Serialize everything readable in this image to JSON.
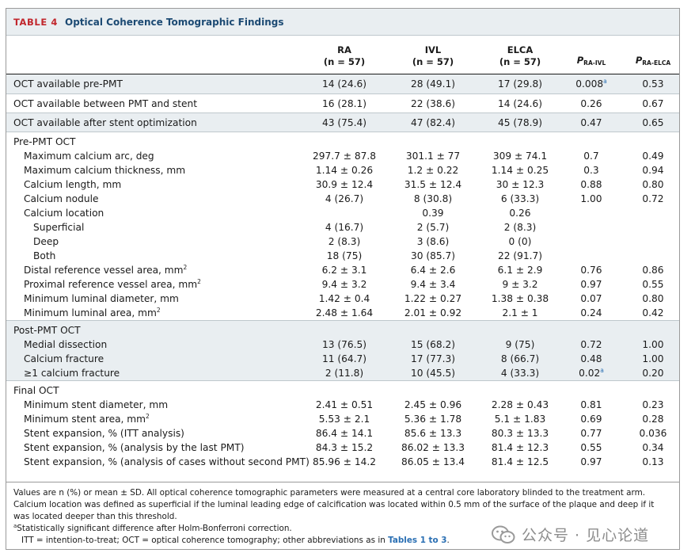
{
  "title": {
    "label": "TABLE 4",
    "text": "Optical Coherence Tomographic Findings"
  },
  "columns": [
    {
      "name": "RA",
      "n": "(n = 57)"
    },
    {
      "name": "IVL",
      "n": "(n = 57)"
    },
    {
      "name": "ELCA",
      "n": "(n = 57)"
    }
  ],
  "p_columns": [
    {
      "p": "P",
      "sub": "RA-IVL"
    },
    {
      "p": "P",
      "sub": "RA-ELCA"
    }
  ],
  "rows": [
    {
      "type": "data",
      "shade": true,
      "tall": true,
      "label": "OCT available pre-PMT",
      "v": [
        "14 (24.6)",
        "28 (49.1)",
        "17 (29.8)",
        "0.008",
        "0.53"
      ],
      "sup3": "a"
    },
    {
      "type": "data",
      "shade": false,
      "tall": true,
      "label": "OCT available between PMT and stent",
      "v": [
        "16 (28.1)",
        "22 (38.6)",
        "14 (24.6)",
        "0.26",
        "0.67"
      ]
    },
    {
      "type": "data",
      "shade": true,
      "tall": true,
      "label": "OCT available after stent optimization",
      "v": [
        "43 (75.4)",
        "47 (82.4)",
        "45 (78.9)",
        "0.47",
        "0.65"
      ]
    },
    {
      "type": "section",
      "shade": false,
      "label": "Pre-PMT OCT"
    },
    {
      "type": "data",
      "shade": false,
      "indent": 1,
      "label": "Maximum calcium arc, deg",
      "v": [
        "297.7 ± 87.8",
        "301.1 ± 77",
        "309 ± 74.1",
        "0.7",
        "0.49"
      ]
    },
    {
      "type": "data",
      "shade": false,
      "indent": 1,
      "label": "Maximum calcium thickness, mm",
      "v": [
        "1.14 ± 0.26",
        "1.2 ± 0.22",
        "1.14 ± 0.25",
        "0.3",
        "0.94"
      ]
    },
    {
      "type": "data",
      "shade": false,
      "indent": 1,
      "label": "Calcium length, mm",
      "v": [
        "30.9 ± 12.4",
        "31.5 ± 12.4",
        "30 ± 12.3",
        "0.88",
        "0.80"
      ]
    },
    {
      "type": "data",
      "shade": false,
      "indent": 1,
      "label": "Calcium nodule",
      "v": [
        "4 (26.7)",
        "8 (30.8)",
        "6 (33.3)",
        "1.00",
        "0.72"
      ]
    },
    {
      "type": "data",
      "shade": false,
      "indent": 1,
      "label": "Calcium location",
      "v": [
        "",
        "0.39",
        "0.26",
        "",
        ""
      ]
    },
    {
      "type": "data",
      "shade": false,
      "indent": 2,
      "label": "Superficial",
      "v": [
        "4 (16.7)",
        "2 (5.7)",
        "2 (8.3)",
        "",
        ""
      ]
    },
    {
      "type": "data",
      "shade": false,
      "indent": 2,
      "label": "Deep",
      "v": [
        "2 (8.3)",
        "3 (8.6)",
        "0 (0)",
        "",
        ""
      ]
    },
    {
      "type": "data",
      "shade": false,
      "indent": 2,
      "label": "Both",
      "v": [
        "18 (75)",
        "30 (85.7)",
        "22 (91.7)",
        "",
        ""
      ]
    },
    {
      "type": "data",
      "shade": false,
      "indent": 1,
      "label": "Distal reference vessel area, mm",
      "labelsup": "2",
      "v": [
        "6.2 ± 3.1",
        "6.4 ± 2.6",
        "6.1 ± 2.9",
        "0.76",
        "0.86"
      ]
    },
    {
      "type": "data",
      "shade": false,
      "indent": 1,
      "label": "Proximal reference vessel area, mm",
      "labelsup": "2",
      "v": [
        "9.4 ± 3.2",
        "9.4 ± 3.4",
        "9 ± 3.2",
        "0.97",
        "0.55"
      ]
    },
    {
      "type": "data",
      "shade": false,
      "indent": 1,
      "label": "Minimum luminal diameter, mm",
      "v": [
        "1.42 ± 0.4",
        "1.22 ± 0.27",
        "1.38 ± 0.38",
        "0.07",
        "0.80"
      ]
    },
    {
      "type": "data",
      "shade": false,
      "indent": 1,
      "label": "Minimum luminal area, mm",
      "labelsup": "2",
      "v": [
        "2.48 ± 1.64",
        "2.01 ± 0.92",
        "2.1 ± 1",
        "0.24",
        "0.42"
      ]
    },
    {
      "type": "section",
      "shade": true,
      "label": "Post-PMT OCT"
    },
    {
      "type": "data",
      "shade": true,
      "indent": 1,
      "label": "Medial dissection",
      "v": [
        "13 (76.5)",
        "15 (68.2)",
        "9 (75)",
        "0.72",
        "1.00"
      ]
    },
    {
      "type": "data",
      "shade": true,
      "indent": 1,
      "label": "Calcium fracture",
      "v": [
        "11 (64.7)",
        "17 (77.3)",
        "8 (66.7)",
        "0.48",
        "1.00"
      ]
    },
    {
      "type": "data",
      "shade": true,
      "indent": 1,
      "label": "≥1 calcium fracture",
      "v": [
        "2 (11.8)",
        "10 (45.5)",
        "4 (33.3)",
        "0.02",
        "0.20"
      ],
      "sup3": "a"
    },
    {
      "type": "section",
      "shade": false,
      "label": "Final OCT"
    },
    {
      "type": "data",
      "shade": false,
      "indent": 1,
      "label": "Minimum stent diameter, mm",
      "v": [
        "2.41 ± 0.51",
        "2.45 ± 0.96",
        "2.28 ± 0.43",
        "0.81",
        "0.23"
      ]
    },
    {
      "type": "data",
      "shade": false,
      "indent": 1,
      "label": "Minimum stent area, mm",
      "labelsup": "2",
      "v": [
        "5.53 ± 2.1",
        "5.36 ± 1.78",
        "5.1 ± 1.83",
        "0.69",
        "0.28"
      ]
    },
    {
      "type": "data",
      "shade": false,
      "indent": 1,
      "label": "Stent expansion, % (ITT analysis)",
      "v": [
        "86.4 ± 14.1",
        "85.6 ± 13.3",
        "80.3 ± 13.3",
        "0.77",
        "0.036"
      ]
    },
    {
      "type": "data",
      "shade": false,
      "indent": 1,
      "label": "Stent expansion, % (analysis by the last PMT)",
      "v": [
        "84.3 ± 15.2",
        "86.02 ± 13.3",
        "81.4 ± 12.3",
        "0.55",
        "0.34"
      ]
    },
    {
      "type": "data",
      "shade": false,
      "indent": 1,
      "label": "Stent expansion, % (analysis of cases without second PMT)",
      "v": [
        "85.96 ± 14.2",
        "86.05 ± 13.4",
        "81.4 ± 12.5",
        "0.97",
        "0.13"
      ]
    }
  ],
  "footnotes": {
    "line1": "Values are n (%) or mean ± SD. All optical coherence tomographic parameters were measured at a central core laboratory blinded to the treatment arm. Calcium location was defined as superficial if the luminal leading edge of calcification was located within 0.5 mm of the surface of the plaque and deep if it was located deeper than this threshold.",
    "sup_a": "a",
    "line2": "Statistically significant difference after Holm-Bonferroni correction.",
    "line3_prefix": "ITT = intention-to-treat; OCT = optical coherence tomography; other abbreviations as in ",
    "line3_link": "Tables 1 to 3",
    "line3_suffix": "."
  },
  "watermark": {
    "text": "公众号 · 见心论道"
  },
  "colors": {
    "accent_red": "#c1272d",
    "title_blue": "#1c4a73",
    "shade": "#e9eef1",
    "link": "#2a6fb3"
  }
}
